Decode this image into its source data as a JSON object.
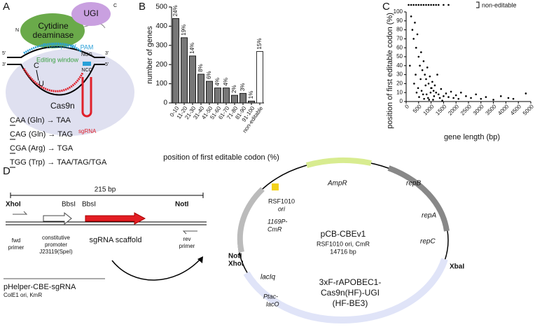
{
  "panel_a": {
    "label": "A",
    "ugi": "UGI",
    "c_term": "C",
    "n_term": "N",
    "deaminase": [
      "Cytidine",
      "deaminase"
    ],
    "protospacer": "Protospacer",
    "pam": "PAM",
    "ngg": "NGG",
    "ncc": "NCC",
    "editing_window": "Editing window",
    "c": "C",
    "u": "U",
    "ends": [
      "5'",
      "3'",
      "3'",
      "5'"
    ],
    "cas9n": "Cas9n",
    "sgrna": "sgRNA",
    "codons": [
      "CAA (Gln) → TAA",
      "CAG (Gln) → TAG",
      "CGA (Arg) → TGA",
      "TGG (Trp) → TAA/TAG/TGA"
    ]
  },
  "panel_d": {
    "label": "D",
    "length": "215 bp",
    "xhoi": "XhoI",
    "bbsi_1": "BbsI",
    "bbsi_2": "BbsI",
    "noti": "NotI",
    "fwd_primer": [
      "fwd",
      "primer"
    ],
    "promoter": [
      "constitutive",
      "promoter",
      "J23119(SpeI)"
    ],
    "scaffold": "sgRNA scaffold",
    "rev_primer": [
      "rev",
      "primer"
    ],
    "helper": "pHelper-CBE-sgRNA",
    "helper_sub": "ColE1 ori, KmR",
    "plasmid": {
      "ampr": "AmpR",
      "repb": "repB",
      "repa": "repA",
      "repc": "repC",
      "rsf_ori": [
        "RSF1010",
        "ori"
      ],
      "cmr": [
        "1169P-",
        "CmR"
      ],
      "name": "pCB-CBEv1",
      "sub": "RSF1010 ori, CmR",
      "size": "14716 bp",
      "noti": "NotI",
      "xhoi": "XhoI",
      "xbai": "XbaI",
      "laciq": "lacIq",
      "ptac": [
        "Ptac-",
        "lacO"
      ],
      "insert": [
        "3xF-rAPOBEC1-",
        "Cas9n(HF)-UGI",
        "(HF-BE3)"
      ]
    }
  },
  "chart_data": [
    {
      "type": "bar",
      "panel": "B",
      "y_label": "number of genes",
      "x_label": "position of first editable codon (%)",
      "categories": [
        "0-10",
        "11-20",
        "21-30",
        "31-40",
        "41-50",
        "51-60",
        "61-70",
        "71-80",
        "81-90",
        "91-100",
        "non-editable"
      ],
      "values": [
        440,
        340,
        245,
        150,
        113,
        78,
        78,
        40,
        50,
        10,
        268
      ],
      "percent_labels": [
        "24%",
        "19%",
        "14%",
        "8%",
        "6%",
        "4%",
        "4%",
        "2%",
        "3%",
        "1%",
        "15%"
      ],
      "colors": [
        "#777777",
        "#777777",
        "#777777",
        "#777777",
        "#777777",
        "#777777",
        "#777777",
        "#777777",
        "#777777",
        "#777777",
        "#ffffff"
      ],
      "ylim": [
        0,
        500
      ],
      "yticks": [
        0,
        100,
        200,
        300,
        400,
        500
      ]
    },
    {
      "type": "scatter",
      "panel": "C",
      "y_label": "position of first editable codon (%)",
      "x_label": "gene length (bp)",
      "color": "#000000",
      "x": [
        200,
        250,
        300,
        350,
        400,
        450,
        500,
        550,
        600,
        650,
        700,
        750,
        800,
        850,
        900,
        950,
        1000,
        1050,
        1100,
        1150,
        1200,
        1300,
        1400,
        1500,
        1600,
        1700,
        1800,
        1900,
        2000,
        2100,
        2200,
        2400,
        2600,
        2800,
        3000,
        3200,
        3500,
        3800,
        4100,
        4300,
        4800,
        150,
        320,
        420,
        520,
        620,
        720,
        820,
        920,
        1020,
        1120,
        1250,
        1350,
        1450,
        380,
        480,
        580,
        680,
        780,
        880,
        980,
        1080
      ],
      "values": [
        95,
        80,
        70,
        88,
        60,
        75,
        50,
        40,
        55,
        35,
        45,
        30,
        25,
        38,
        20,
        28,
        15,
        22,
        12,
        18,
        10,
        8,
        14,
        6,
        9,
        5,
        11,
        4,
        7,
        3,
        10,
        6,
        4,
        8,
        3,
        5,
        2,
        6,
        4,
        3,
        9,
        40,
        20,
        10,
        5,
        12,
        3,
        8,
        2,
        15,
        6,
        30,
        4,
        1,
        30,
        15,
        25,
        8,
        18,
        4,
        10,
        2
      ],
      "non_editable": {
        "label": "non-editable",
        "x": [
          100,
          200,
          300,
          400,
          500,
          600,
          700,
          800,
          900,
          1000,
          1100,
          1200,
          1300,
          1500,
          1700
        ]
      },
      "xlim": [
        0,
        5000
      ],
      "xticks": [
        0,
        500,
        1000,
        1500,
        2000,
        2500,
        3000,
        3500,
        4000,
        4500,
        5000
      ],
      "ylim": [
        0,
        100
      ],
      "yticks": [
        0,
        10,
        20,
        30,
        40,
        50,
        60,
        70,
        80,
        90,
        100
      ]
    }
  ]
}
